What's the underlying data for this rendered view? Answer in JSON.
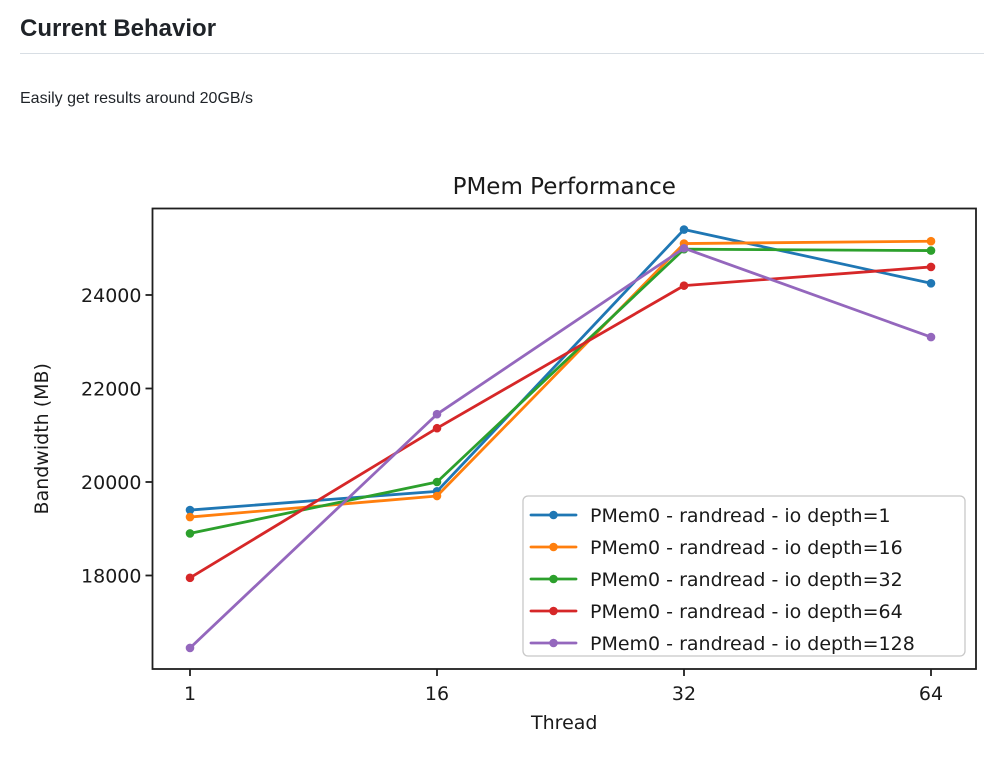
{
  "page": {
    "heading": "Current Behavior",
    "paragraph": "Easily get results around 20GB/s"
  },
  "chart_data": {
    "type": "line",
    "title": "PMem Performance",
    "xlabel": "Thread",
    "ylabel": "Bandwidth (MB)",
    "categories": [
      "1",
      "16",
      "32",
      "64"
    ],
    "y_ticks": [
      18000,
      20000,
      22000,
      24000
    ],
    "ylim": [
      16000,
      25850
    ],
    "grid": false,
    "legend_position": "lower-right-inside",
    "axis_color": "#1f1f1f",
    "series": [
      {
        "name": "PMem0 - randread - io depth=1",
        "color": "#1f77b4",
        "values": [
          19400,
          19800,
          25400,
          24250
        ]
      },
      {
        "name": "PMem0 - randread - io depth=16",
        "color": "#ff7f0e",
        "values": [
          19250,
          19700,
          25100,
          25150
        ]
      },
      {
        "name": "PMem0 - randread - io depth=32",
        "color": "#2ca02c",
        "values": [
          18900,
          20000,
          24980,
          24950
        ]
      },
      {
        "name": "PMem0 - randread - io depth=64",
        "color": "#d62728",
        "values": [
          17950,
          21150,
          24200,
          24600
        ]
      },
      {
        "name": "PMem0 - randread - io depth=128",
        "color": "#9467bd",
        "values": [
          16450,
          21450,
          25000,
          23100
        ]
      }
    ]
  }
}
